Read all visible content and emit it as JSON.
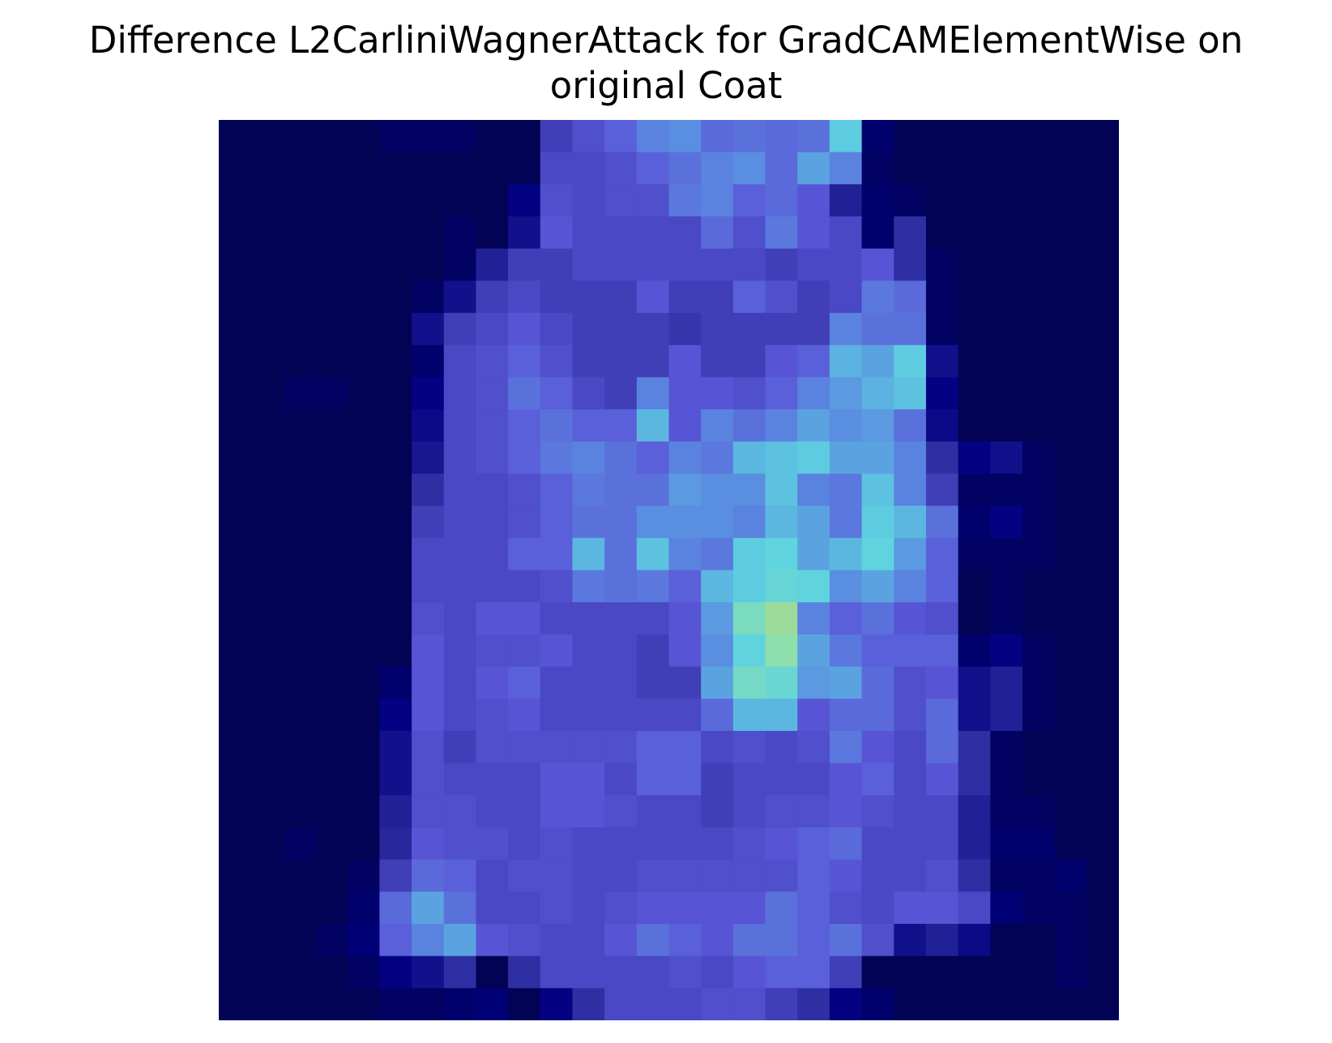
{
  "chart_data": {
    "type": "heatmap",
    "title_line1": "Difference L2CarliniWagnerAttack for GradCAMElementWise on",
    "title_line2": "original Coat",
    "grid": false,
    "axes_visible": false,
    "rows": 28,
    "cols": 28,
    "palette": [
      "#04043f",
      "#000080",
      "#2a2a9e",
      "#5a58d8",
      "#5a8ae0",
      "#5ed3e0",
      "#8fe0a8",
      "#d8c050"
    ],
    "values": [
      [
        0.05,
        0.05,
        0.05,
        0.05,
        0.05,
        0.08,
        0.08,
        0.08,
        0.05,
        0.05,
        0.35,
        0.4,
        0.45,
        0.55,
        0.58,
        0.48,
        0.5,
        0.48,
        0.5,
        0.7,
        0.1,
        0.05,
        0.05,
        0.05,
        0.05,
        0.05,
        0.05,
        0.05
      ],
      [
        0.05,
        0.05,
        0.05,
        0.05,
        0.05,
        0.05,
        0.05,
        0.05,
        0.05,
        0.05,
        0.38,
        0.38,
        0.4,
        0.45,
        0.5,
        0.55,
        0.58,
        0.48,
        0.62,
        0.55,
        0.08,
        0.05,
        0.05,
        0.05,
        0.05,
        0.05,
        0.05,
        0.05
      ],
      [
        0.05,
        0.05,
        0.05,
        0.05,
        0.05,
        0.05,
        0.05,
        0.05,
        0.05,
        0.15,
        0.4,
        0.38,
        0.4,
        0.4,
        0.52,
        0.55,
        0.45,
        0.48,
        0.42,
        0.25,
        0.1,
        0.08,
        0.05,
        0.05,
        0.05,
        0.05,
        0.05,
        0.05
      ],
      [
        0.05,
        0.05,
        0.05,
        0.05,
        0.05,
        0.05,
        0.05,
        0.08,
        0.05,
        0.2,
        0.42,
        0.38,
        0.38,
        0.38,
        0.38,
        0.48,
        0.4,
        0.52,
        0.42,
        0.38,
        0.1,
        0.3,
        0.05,
        0.05,
        0.05,
        0.05,
        0.05,
        0.05
      ],
      [
        0.05,
        0.05,
        0.05,
        0.05,
        0.05,
        0.05,
        0.05,
        0.08,
        0.25,
        0.35,
        0.35,
        0.38,
        0.38,
        0.38,
        0.38,
        0.38,
        0.38,
        0.35,
        0.38,
        0.38,
        0.42,
        0.3,
        0.08,
        0.05,
        0.05,
        0.05,
        0.05,
        0.05
      ],
      [
        0.05,
        0.05,
        0.05,
        0.05,
        0.05,
        0.05,
        0.08,
        0.2,
        0.35,
        0.38,
        0.35,
        0.35,
        0.35,
        0.42,
        0.35,
        0.35,
        0.45,
        0.4,
        0.35,
        0.38,
        0.52,
        0.48,
        0.08,
        0.05,
        0.05,
        0.05,
        0.05,
        0.05
      ],
      [
        0.05,
        0.05,
        0.05,
        0.05,
        0.05,
        0.05,
        0.2,
        0.35,
        0.38,
        0.42,
        0.38,
        0.35,
        0.35,
        0.35,
        0.32,
        0.35,
        0.35,
        0.35,
        0.35,
        0.55,
        0.5,
        0.5,
        0.08,
        0.05,
        0.05,
        0.05,
        0.05,
        0.05
      ],
      [
        0.05,
        0.05,
        0.05,
        0.05,
        0.05,
        0.05,
        0.1,
        0.38,
        0.4,
        0.45,
        0.4,
        0.35,
        0.35,
        0.35,
        0.42,
        0.35,
        0.35,
        0.42,
        0.45,
        0.65,
        0.62,
        0.7,
        0.2,
        0.05,
        0.05,
        0.05,
        0.05,
        0.05
      ],
      [
        0.05,
        0.05,
        0.08,
        0.08,
        0.05,
        0.05,
        0.15,
        0.38,
        0.4,
        0.5,
        0.45,
        0.38,
        0.35,
        0.55,
        0.42,
        0.42,
        0.4,
        0.45,
        0.55,
        0.6,
        0.65,
        0.68,
        0.15,
        0.05,
        0.05,
        0.05,
        0.05,
        0.05
      ],
      [
        0.05,
        0.05,
        0.05,
        0.05,
        0.05,
        0.05,
        0.18,
        0.38,
        0.4,
        0.45,
        0.5,
        0.45,
        0.45,
        0.66,
        0.42,
        0.55,
        0.5,
        0.55,
        0.62,
        0.58,
        0.6,
        0.5,
        0.18,
        0.05,
        0.05,
        0.05,
        0.05,
        0.05
      ],
      [
        0.05,
        0.05,
        0.05,
        0.05,
        0.05,
        0.05,
        0.22,
        0.38,
        0.4,
        0.45,
        0.52,
        0.55,
        0.5,
        0.45,
        0.55,
        0.52,
        0.66,
        0.68,
        0.7,
        0.62,
        0.62,
        0.55,
        0.3,
        0.15,
        0.2,
        0.08,
        0.05,
        0.05
      ],
      [
        0.05,
        0.05,
        0.05,
        0.05,
        0.05,
        0.05,
        0.3,
        0.38,
        0.38,
        0.4,
        0.45,
        0.52,
        0.5,
        0.5,
        0.6,
        0.58,
        0.58,
        0.68,
        0.55,
        0.52,
        0.68,
        0.55,
        0.35,
        0.08,
        0.08,
        0.08,
        0.05,
        0.05
      ],
      [
        0.05,
        0.05,
        0.05,
        0.05,
        0.05,
        0.05,
        0.35,
        0.38,
        0.38,
        0.4,
        0.45,
        0.5,
        0.5,
        0.58,
        0.58,
        0.58,
        0.55,
        0.66,
        0.62,
        0.52,
        0.7,
        0.66,
        0.5,
        0.1,
        0.15,
        0.08,
        0.05,
        0.05
      ],
      [
        0.05,
        0.05,
        0.05,
        0.05,
        0.05,
        0.05,
        0.38,
        0.38,
        0.38,
        0.45,
        0.45,
        0.66,
        0.5,
        0.68,
        0.55,
        0.52,
        0.7,
        0.72,
        0.62,
        0.66,
        0.72,
        0.6,
        0.45,
        0.08,
        0.08,
        0.08,
        0.05,
        0.05
      ],
      [
        0.05,
        0.05,
        0.05,
        0.05,
        0.05,
        0.05,
        0.38,
        0.38,
        0.38,
        0.38,
        0.4,
        0.52,
        0.5,
        0.52,
        0.45,
        0.66,
        0.7,
        0.74,
        0.72,
        0.58,
        0.62,
        0.55,
        0.45,
        0.05,
        0.08,
        0.05,
        0.05,
        0.05
      ],
      [
        0.05,
        0.05,
        0.05,
        0.05,
        0.05,
        0.05,
        0.4,
        0.38,
        0.42,
        0.42,
        0.38,
        0.38,
        0.38,
        0.38,
        0.42,
        0.6,
        0.8,
        0.88,
        0.55,
        0.45,
        0.5,
        0.42,
        0.4,
        0.05,
        0.08,
        0.05,
        0.05,
        0.05
      ],
      [
        0.05,
        0.05,
        0.05,
        0.05,
        0.05,
        0.05,
        0.42,
        0.38,
        0.4,
        0.4,
        0.42,
        0.38,
        0.38,
        0.35,
        0.42,
        0.58,
        0.72,
        0.85,
        0.62,
        0.52,
        0.45,
        0.45,
        0.45,
        0.1,
        0.15,
        0.08,
        0.05,
        0.05
      ],
      [
        0.05,
        0.05,
        0.05,
        0.05,
        0.05,
        0.1,
        0.42,
        0.38,
        0.42,
        0.45,
        0.38,
        0.38,
        0.38,
        0.35,
        0.35,
        0.62,
        0.78,
        0.75,
        0.6,
        0.62,
        0.48,
        0.4,
        0.42,
        0.2,
        0.25,
        0.08,
        0.05,
        0.05
      ],
      [
        0.05,
        0.05,
        0.05,
        0.05,
        0.05,
        0.15,
        0.42,
        0.38,
        0.4,
        0.42,
        0.38,
        0.38,
        0.38,
        0.38,
        0.38,
        0.48,
        0.66,
        0.66,
        0.42,
        0.48,
        0.48,
        0.4,
        0.48,
        0.2,
        0.25,
        0.08,
        0.05,
        0.05
      ],
      [
        0.05,
        0.05,
        0.05,
        0.05,
        0.05,
        0.2,
        0.4,
        0.35,
        0.4,
        0.4,
        0.4,
        0.4,
        0.4,
        0.45,
        0.45,
        0.38,
        0.4,
        0.38,
        0.4,
        0.52,
        0.42,
        0.38,
        0.48,
        0.3,
        0.08,
        0.05,
        0.05,
        0.05
      ],
      [
        0.05,
        0.05,
        0.05,
        0.05,
        0.05,
        0.2,
        0.4,
        0.38,
        0.38,
        0.38,
        0.42,
        0.42,
        0.38,
        0.45,
        0.45,
        0.35,
        0.38,
        0.38,
        0.38,
        0.42,
        0.45,
        0.38,
        0.42,
        0.3,
        0.08,
        0.05,
        0.05,
        0.05
      ],
      [
        0.05,
        0.05,
        0.05,
        0.05,
        0.05,
        0.25,
        0.4,
        0.4,
        0.38,
        0.38,
        0.42,
        0.42,
        0.4,
        0.38,
        0.38,
        0.35,
        0.38,
        0.4,
        0.4,
        0.42,
        0.4,
        0.38,
        0.38,
        0.25,
        0.08,
        0.08,
        0.05,
        0.05
      ],
      [
        0.05,
        0.05,
        0.08,
        0.05,
        0.05,
        0.28,
        0.42,
        0.4,
        0.4,
        0.38,
        0.4,
        0.38,
        0.38,
        0.38,
        0.38,
        0.38,
        0.4,
        0.42,
        0.45,
        0.48,
        0.38,
        0.38,
        0.38,
        0.25,
        0.1,
        0.1,
        0.05,
        0.05
      ],
      [
        0.05,
        0.05,
        0.05,
        0.05,
        0.08,
        0.35,
        0.48,
        0.45,
        0.38,
        0.4,
        0.4,
        0.38,
        0.38,
        0.4,
        0.4,
        0.4,
        0.4,
        0.4,
        0.45,
        0.42,
        0.38,
        0.38,
        0.4,
        0.3,
        0.08,
        0.08,
        0.1,
        0.05
      ],
      [
        0.05,
        0.05,
        0.05,
        0.05,
        0.1,
        0.48,
        0.62,
        0.5,
        0.38,
        0.38,
        0.4,
        0.38,
        0.4,
        0.42,
        0.42,
        0.42,
        0.42,
        0.5,
        0.45,
        0.4,
        0.38,
        0.42,
        0.42,
        0.38,
        0.12,
        0.08,
        0.08,
        0.05
      ],
      [
        0.05,
        0.05,
        0.05,
        0.08,
        0.12,
        0.45,
        0.55,
        0.62,
        0.42,
        0.4,
        0.38,
        0.38,
        0.42,
        0.5,
        0.45,
        0.42,
        0.5,
        0.5,
        0.45,
        0.5,
        0.4,
        0.2,
        0.25,
        0.18,
        0.05,
        0.05,
        0.08,
        0.05
      ],
      [
        0.05,
        0.05,
        0.05,
        0.05,
        0.08,
        0.15,
        0.2,
        0.3,
        0.05,
        0.3,
        0.38,
        0.38,
        0.38,
        0.38,
        0.4,
        0.38,
        0.42,
        0.45,
        0.45,
        0.35,
        0.05,
        0.05,
        0.05,
        0.05,
        0.05,
        0.05,
        0.08,
        0.05
      ],
      [
        0.05,
        0.05,
        0.05,
        0.05,
        0.05,
        0.08,
        0.08,
        0.1,
        0.12,
        0.05,
        0.15,
        0.3,
        0.38,
        0.38,
        0.38,
        0.4,
        0.4,
        0.35,
        0.3,
        0.15,
        0.1,
        0.05,
        0.05,
        0.05,
        0.05,
        0.05,
        0.05,
        0.05
      ]
    ]
  }
}
